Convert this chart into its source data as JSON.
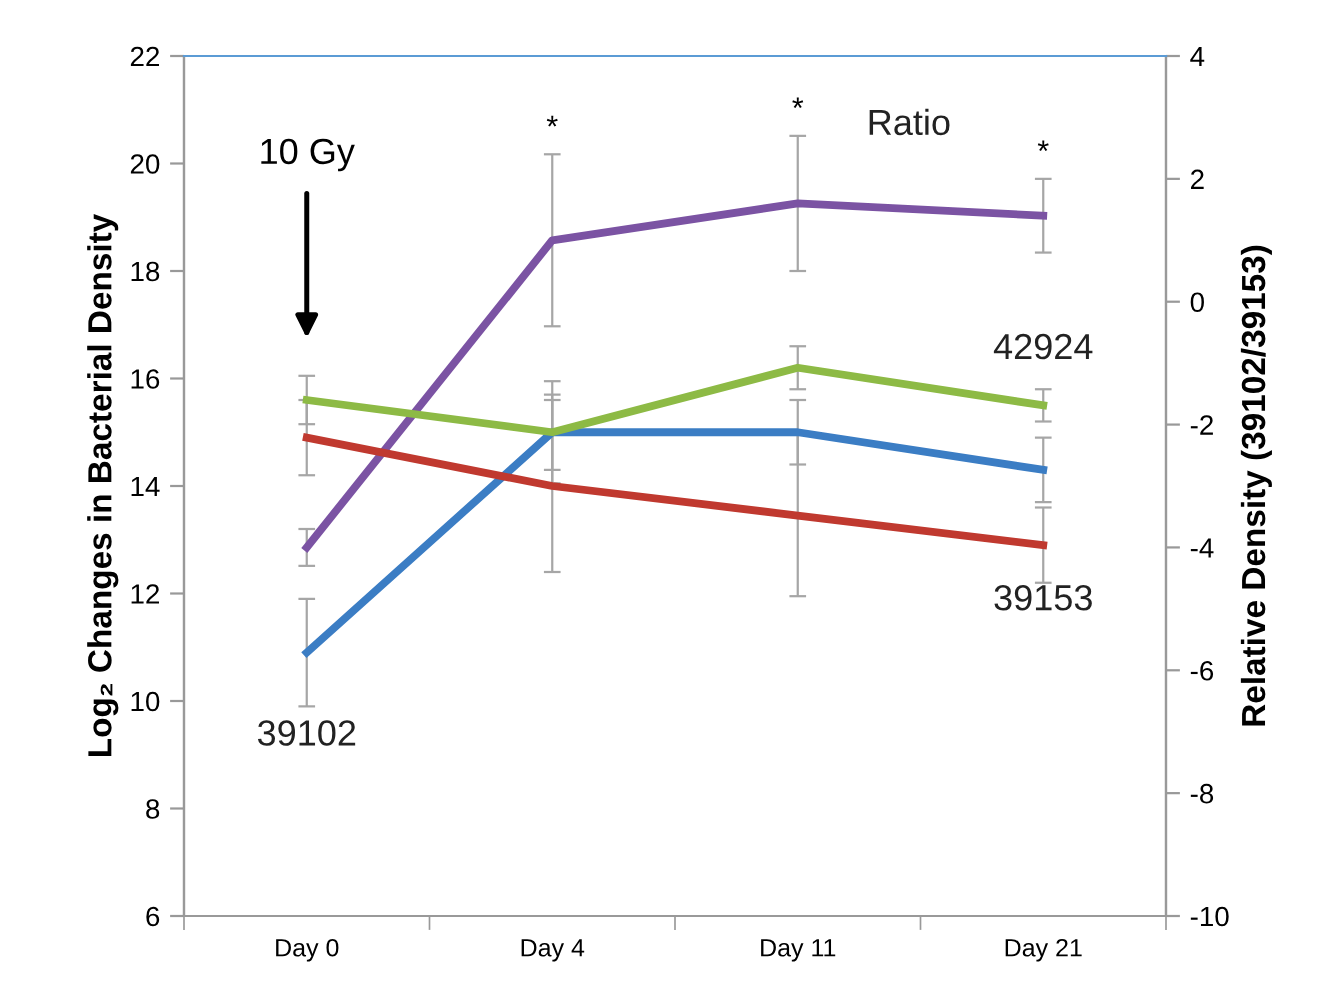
{
  "chart_data": {
    "type": "line",
    "categories": [
      "Day 0",
      "Day 4",
      "Day 11",
      "Day 21"
    ],
    "ylabel": "Log₂ Changes in Bacterial Density",
    "y2label": "Relative Density (39102/39153)",
    "ylim": [
      6,
      22
    ],
    "yticks": [
      6,
      8,
      10,
      12,
      14,
      16,
      18,
      20,
      22
    ],
    "y2lim": [
      -10,
      4
    ],
    "y2ticks": [
      -10,
      -8,
      -6,
      -4,
      -2,
      0,
      2,
      4
    ],
    "grid": false,
    "legend": false,
    "marker": "none",
    "line_style": "solid",
    "series": [
      {
        "name": "39102",
        "color": "#3b7dc4",
        "values": [
          10.9,
          15.0,
          15.0,
          14.3
        ],
        "errors": [
          1.0,
          0.95,
          0.6,
          0.6
        ]
      },
      {
        "name": "39153",
        "color": "#c0392f",
        "values": [
          14.9,
          14.0,
          13.45,
          12.9
        ],
        "errors": [
          0.7,
          1.6,
          1.5,
          0.7
        ]
      },
      {
        "name": "42924",
        "color": "#8dba45",
        "values": [
          15.6,
          15.0,
          16.2,
          15.5
        ],
        "errors": [
          0.45,
          0.7,
          0.4,
          0.3
        ]
      },
      {
        "name": "Ratio",
        "color": "#7b53a3",
        "axis": "y2",
        "values": [
          -4.0,
          1.0,
          1.6,
          1.4
        ],
        "errors": [
          0.3,
          1.4,
          1.1,
          0.6
        ]
      }
    ],
    "annotations": [
      "10 Gy",
      "*",
      "*",
      "*"
    ]
  }
}
